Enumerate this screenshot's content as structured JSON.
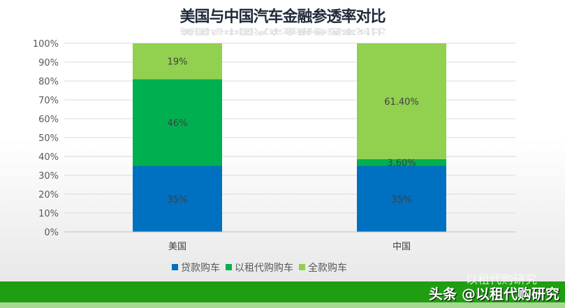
{
  "chart_data": {
    "type": "bar",
    "stacked": true,
    "title": "美国与中国汽车金融参透率对比",
    "categories": [
      "美国",
      "中国"
    ],
    "series": [
      {
        "name": "贷款购车",
        "values": [
          35,
          35
        ],
        "labels": [
          "35%",
          "35%"
        ],
        "color": "#0070C0"
      },
      {
        "name": "以租代购购车",
        "values": [
          46,
          3.6
        ],
        "labels": [
          "46%",
          "3.60%"
        ],
        "color": "#00B050"
      },
      {
        "name": "全款购车",
        "values": [
          19,
          61.4
        ],
        "labels": [
          "19%",
          "61.40%"
        ],
        "color": "#92D050"
      }
    ],
    "ylim": [
      0,
      100
    ],
    "yticks": [
      "0%",
      "10%",
      "20%",
      "30%",
      "40%",
      "50%",
      "60%",
      "70%",
      "80%",
      "90%",
      "100%"
    ],
    "grid": true,
    "legend": "bottom"
  },
  "watermark": {
    "line1": "以租代购研究",
    "line2": "头条 @以租代购研究"
  }
}
